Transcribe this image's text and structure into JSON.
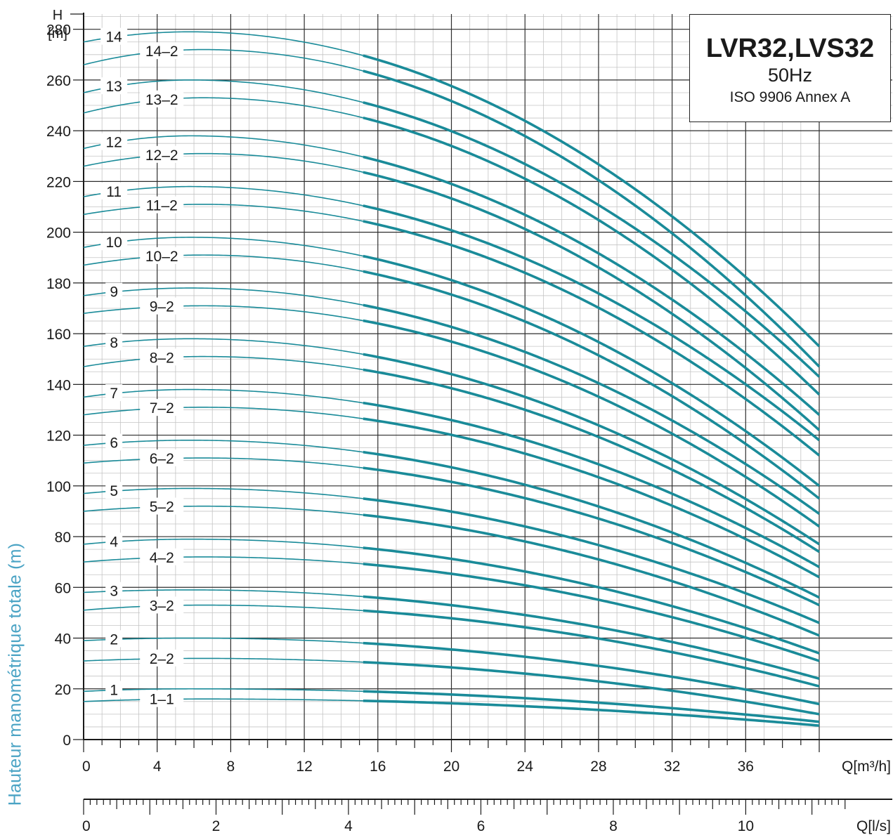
{
  "chart_data": {
    "type": "line",
    "title": "LVR32,LVS32",
    "subtitle": "50Hz",
    "standard": "ISO 9906 Annex A",
    "y_axis": {
      "label_top": "H",
      "unit_top": "[m]",
      "side_label": "Hauteur manométrique totale (m)",
      "ylim": [
        0,
        286
      ],
      "ticks": [
        0,
        20,
        40,
        60,
        80,
        100,
        120,
        140,
        160,
        180,
        200,
        220,
        240,
        260,
        280
      ]
    },
    "x_axis_flow_m3h": {
      "label": "Q[m³/h]",
      "xlim": [
        0,
        40
      ],
      "ticks": [
        0,
        4,
        8,
        12,
        16,
        20,
        24,
        28,
        32,
        36
      ]
    },
    "x_axis_flow_ls": {
      "label": "Q[l/s]",
      "xlim": [
        0,
        11.11
      ],
      "ticks": [
        0,
        2,
        4,
        6,
        8,
        10
      ]
    },
    "preferred_range_m3h": [
      15.2,
      40
    ],
    "grid": true,
    "line_color": "#1a8b99",
    "series": [
      {
        "name": "14",
        "h_shutoff": 275,
        "h_peak": 279,
        "q_peak": 5.8,
        "h_end": 155
      },
      {
        "name": "14–2",
        "h_shutoff": 266,
        "h_peak": 272,
        "q_peak": 6.5,
        "h_end": 147
      },
      {
        "name": "13",
        "h_shutoff": 255,
        "h_peak": 260,
        "q_peak": 5.8,
        "h_end": 143
      },
      {
        "name": "13–2",
        "h_shutoff": 247,
        "h_peak": 253,
        "q_peak": 6.5,
        "h_end": 136
      },
      {
        "name": "12",
        "h_shutoff": 233,
        "h_peak": 238,
        "q_peak": 5.8,
        "h_end": 128
      },
      {
        "name": "12–2",
        "h_shutoff": 226,
        "h_peak": 231,
        "q_peak": 6.5,
        "h_end": 122
      },
      {
        "name": "11",
        "h_shutoff": 214,
        "h_peak": 218,
        "q_peak": 5.8,
        "h_end": 118
      },
      {
        "name": "11–2",
        "h_shutoff": 207,
        "h_peak": 211,
        "q_peak": 6.5,
        "h_end": 112
      },
      {
        "name": "10",
        "h_shutoff": 194,
        "h_peak": 198,
        "q_peak": 5.8,
        "h_end": 100
      },
      {
        "name": "10–2",
        "h_shutoff": 187,
        "h_peak": 191,
        "q_peak": 6.5,
        "h_end": 95
      },
      {
        "name": "9",
        "h_shutoff": 175,
        "h_peak": 178,
        "q_peak": 5.8,
        "h_end": 89
      },
      {
        "name": "9–2",
        "h_shutoff": 168,
        "h_peak": 171,
        "q_peak": 6.5,
        "h_end": 84
      },
      {
        "name": "8",
        "h_shutoff": 155,
        "h_peak": 158,
        "q_peak": 5.8,
        "h_end": 77
      },
      {
        "name": "8–2",
        "h_shutoff": 147,
        "h_peak": 151,
        "q_peak": 6.5,
        "h_end": 74
      },
      {
        "name": "7",
        "h_shutoff": 135,
        "h_peak": 138,
        "q_peak": 5.8,
        "h_end": 68
      },
      {
        "name": "7–2",
        "h_shutoff": 128,
        "h_peak": 131,
        "q_peak": 6.5,
        "h_end": 64
      },
      {
        "name": "6",
        "h_shutoff": 116,
        "h_peak": 118,
        "q_peak": 5.8,
        "h_end": 56
      },
      {
        "name": "6–2",
        "h_shutoff": 109,
        "h_peak": 111,
        "q_peak": 6.5,
        "h_end": 53
      },
      {
        "name": "5",
        "h_shutoff": 97,
        "h_peak": 99,
        "q_peak": 5.8,
        "h_end": 46
      },
      {
        "name": "5–2",
        "h_shutoff": 90,
        "h_peak": 92,
        "q_peak": 6.5,
        "h_end": 41
      },
      {
        "name": "4",
        "h_shutoff": 77,
        "h_peak": 79,
        "q_peak": 5.8,
        "h_end": 34
      },
      {
        "name": "4–2",
        "h_shutoff": 70,
        "h_peak": 72,
        "q_peak": 6.5,
        "h_end": 31
      },
      {
        "name": "3",
        "h_shutoff": 58,
        "h_peak": 59,
        "q_peak": 5.8,
        "h_end": 24
      },
      {
        "name": "3–2",
        "h_shutoff": 51,
        "h_peak": 53,
        "q_peak": 6.5,
        "h_end": 21
      },
      {
        "name": "2",
        "h_shutoff": 39,
        "h_peak": 40,
        "q_peak": 5.8,
        "h_end": 14
      },
      {
        "name": "2–2",
        "h_shutoff": 31,
        "h_peak": 32,
        "q_peak": 6.5,
        "h_end": 10
      },
      {
        "name": "1",
        "h_shutoff": 19,
        "h_peak": 20,
        "q_peak": 5.8,
        "h_end": 7
      },
      {
        "name": "1–1",
        "h_shutoff": 15,
        "h_peak": 16,
        "q_peak": 6.5,
        "h_end": 5.5
      }
    ]
  }
}
